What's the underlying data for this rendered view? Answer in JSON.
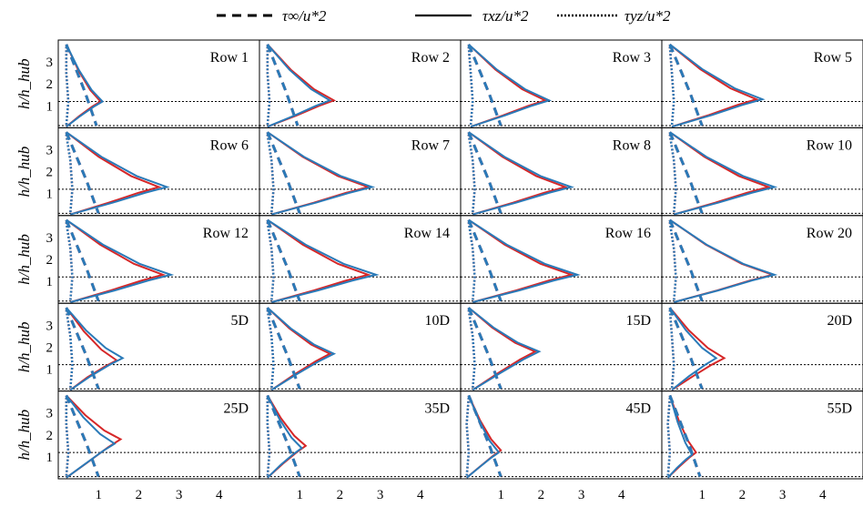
{
  "legend": {
    "items": [
      {
        "label": "τ∞/u*2",
        "dash": "dashed"
      },
      {
        "label": "τxz/u*2",
        "dash": "solid"
      },
      {
        "label": "τyz/u*2",
        "dash": "dotted"
      }
    ]
  },
  "y_axis_label": "h/h_hub",
  "x_tick_labels": [
    "1",
    "2",
    "3",
    "4"
  ],
  "y_tick_labels": [
    "1",
    "2",
    "3"
  ],
  "colors": {
    "red": "#d62728",
    "blue": "#2a7ab8",
    "frame": "#000000",
    "reference": "#000000"
  },
  "chart_data": {
    "type": "line",
    "layout": "5x4 small multiples",
    "x_range": [
      0,
      5
    ],
    "y_range": [
      0,
      4
    ],
    "reference_lines_y": [
      0.1,
      1.2
    ],
    "panels": [
      {
        "label": "Row 1",
        "xz_red": {
          "peak_x": 1.05,
          "peak_y": 1.2
        },
        "xz_blue": {
          "peak_x": 1.1,
          "peak_y": 1.2
        },
        "inf": 0.95,
        "yz": 0.15
      },
      {
        "label": "Row 2",
        "xz_red": {
          "peak_x": 1.85,
          "peak_y": 1.25
        },
        "xz_blue": {
          "peak_x": 1.75,
          "peak_y": 1.25
        },
        "inf": 0.95,
        "yz": 0.15
      },
      {
        "label": "Row 3",
        "xz_red": {
          "peak_x": 2.1,
          "peak_y": 1.25
        },
        "xz_blue": {
          "peak_x": 2.2,
          "peak_y": 1.25
        },
        "inf": 1.0,
        "yz": 0.2
      },
      {
        "label": "Row 5",
        "xz_red": {
          "peak_x": 2.35,
          "peak_y": 1.3
        },
        "xz_blue": {
          "peak_x": 2.5,
          "peak_y": 1.3
        },
        "inf": 1.0,
        "yz": 0.2
      },
      {
        "label": "Row 6",
        "xz_red": {
          "peak_x": 2.5,
          "peak_y": 1.3
        },
        "xz_blue": {
          "peak_x": 2.7,
          "peak_y": 1.3
        },
        "inf": 1.0,
        "yz": 0.25
      },
      {
        "label": "Row 7",
        "xz_red": {
          "peak_x": 2.7,
          "peak_y": 1.3
        },
        "xz_blue": {
          "peak_x": 2.8,
          "peak_y": 1.3
        },
        "inf": 1.0,
        "yz": 0.25
      },
      {
        "label": "Row 8",
        "xz_red": {
          "peak_x": 2.6,
          "peak_y": 1.3
        },
        "xz_blue": {
          "peak_x": 2.75,
          "peak_y": 1.3
        },
        "inf": 1.0,
        "yz": 0.25
      },
      {
        "label": "Row 10",
        "xz_red": {
          "peak_x": 2.65,
          "peak_y": 1.3
        },
        "xz_blue": {
          "peak_x": 2.8,
          "peak_y": 1.3
        },
        "inf": 1.0,
        "yz": 0.25
      },
      {
        "label": "Row 12",
        "xz_red": {
          "peak_x": 2.6,
          "peak_y": 1.3
        },
        "xz_blue": {
          "peak_x": 2.8,
          "peak_y": 1.3
        },
        "inf": 1.0,
        "yz": 0.25
      },
      {
        "label": "Row 14",
        "xz_red": {
          "peak_x": 2.7,
          "peak_y": 1.3
        },
        "xz_blue": {
          "peak_x": 2.9,
          "peak_y": 1.3
        },
        "inf": 1.0,
        "yz": 0.25
      },
      {
        "label": "Row 16",
        "xz_red": {
          "peak_x": 2.75,
          "peak_y": 1.3
        },
        "xz_blue": {
          "peak_x": 2.9,
          "peak_y": 1.3
        },
        "inf": 1.0,
        "yz": 0.25
      },
      {
        "label": "Row 20",
        "xz_red": {
          "peak_x": 2.75,
          "peak_y": 1.3
        },
        "xz_blue": {
          "peak_x": 2.8,
          "peak_y": 1.3
        },
        "inf": 1.0,
        "yz": 0.25
      },
      {
        "label": "5D",
        "xz_red": {
          "peak_x": 1.45,
          "peak_y": 1.4
        },
        "xz_blue": {
          "peak_x": 1.6,
          "peak_y": 1.5
        },
        "inf": 1.0,
        "yz": 0.25
      },
      {
        "label": "10D",
        "xz_red": {
          "peak_x": 1.75,
          "peak_y": 1.7
        },
        "xz_blue": {
          "peak_x": 1.85,
          "peak_y": 1.7
        },
        "inf": 1.0,
        "yz": 0.25
      },
      {
        "label": "15D",
        "xz_red": {
          "peak_x": 1.85,
          "peak_y": 1.8
        },
        "xz_blue": {
          "peak_x": 1.95,
          "peak_y": 1.8
        },
        "inf": 1.0,
        "yz": 0.25
      },
      {
        "label": "20D",
        "xz_red": {
          "peak_x": 1.55,
          "peak_y": 1.5
        },
        "xz_blue": {
          "peak_x": 1.35,
          "peak_y": 1.5
        },
        "inf": 1.0,
        "yz": 0.2
      },
      {
        "label": "25D",
        "xz_red": {
          "peak_x": 1.55,
          "peak_y": 1.8
        },
        "xz_blue": {
          "peak_x": 1.4,
          "peak_y": 1.6
        },
        "inf": 1.0,
        "yz": 0.15
      },
      {
        "label": "35D",
        "xz_red": {
          "peak_x": 1.15,
          "peak_y": 1.5
        },
        "xz_blue": {
          "peak_x": 1.05,
          "peak_y": 1.4
        },
        "inf": 1.0,
        "yz": 0.15
      },
      {
        "label": "45D",
        "xz_red": {
          "peak_x": 1.0,
          "peak_y": 1.3
        },
        "xz_blue": {
          "peak_x": 0.95,
          "peak_y": 1.2
        },
        "inf": 1.0,
        "yz": 0.1
      },
      {
        "label": "55D",
        "xz_red": {
          "peak_x": 0.85,
          "peak_y": 1.2
        },
        "xz_blue": {
          "peak_x": 0.75,
          "peak_y": 1.1
        },
        "inf": 0.95,
        "yz": 0.1
      }
    ]
  }
}
